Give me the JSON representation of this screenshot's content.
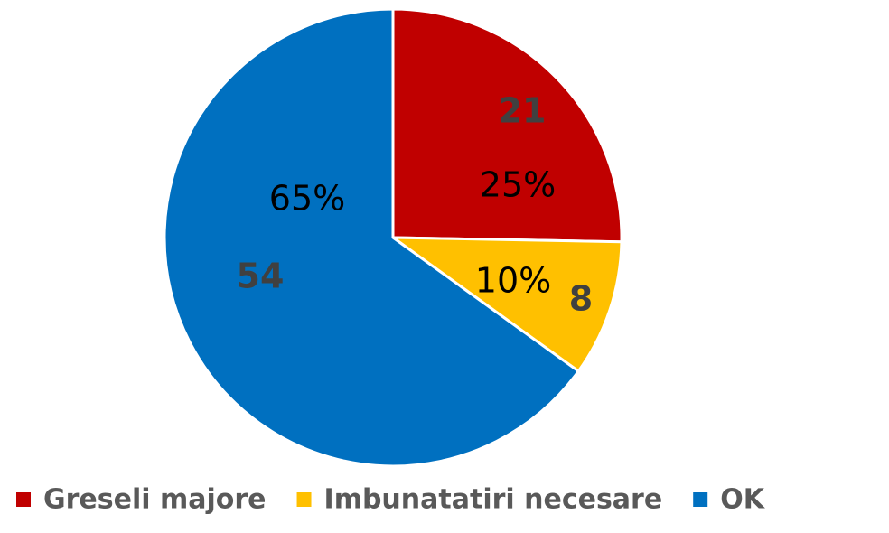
{
  "chart_data": {
    "type": "pie",
    "categories": [
      "Greseli majore",
      "Imbunatatiri necesare",
      "OK"
    ],
    "values": [
      21,
      8,
      54
    ],
    "percent_labels": [
      "25%",
      "10%",
      "65%"
    ],
    "colors": [
      "#c00000",
      "#ffc000",
      "#0070c0"
    ],
    "legend": "bottom"
  }
}
